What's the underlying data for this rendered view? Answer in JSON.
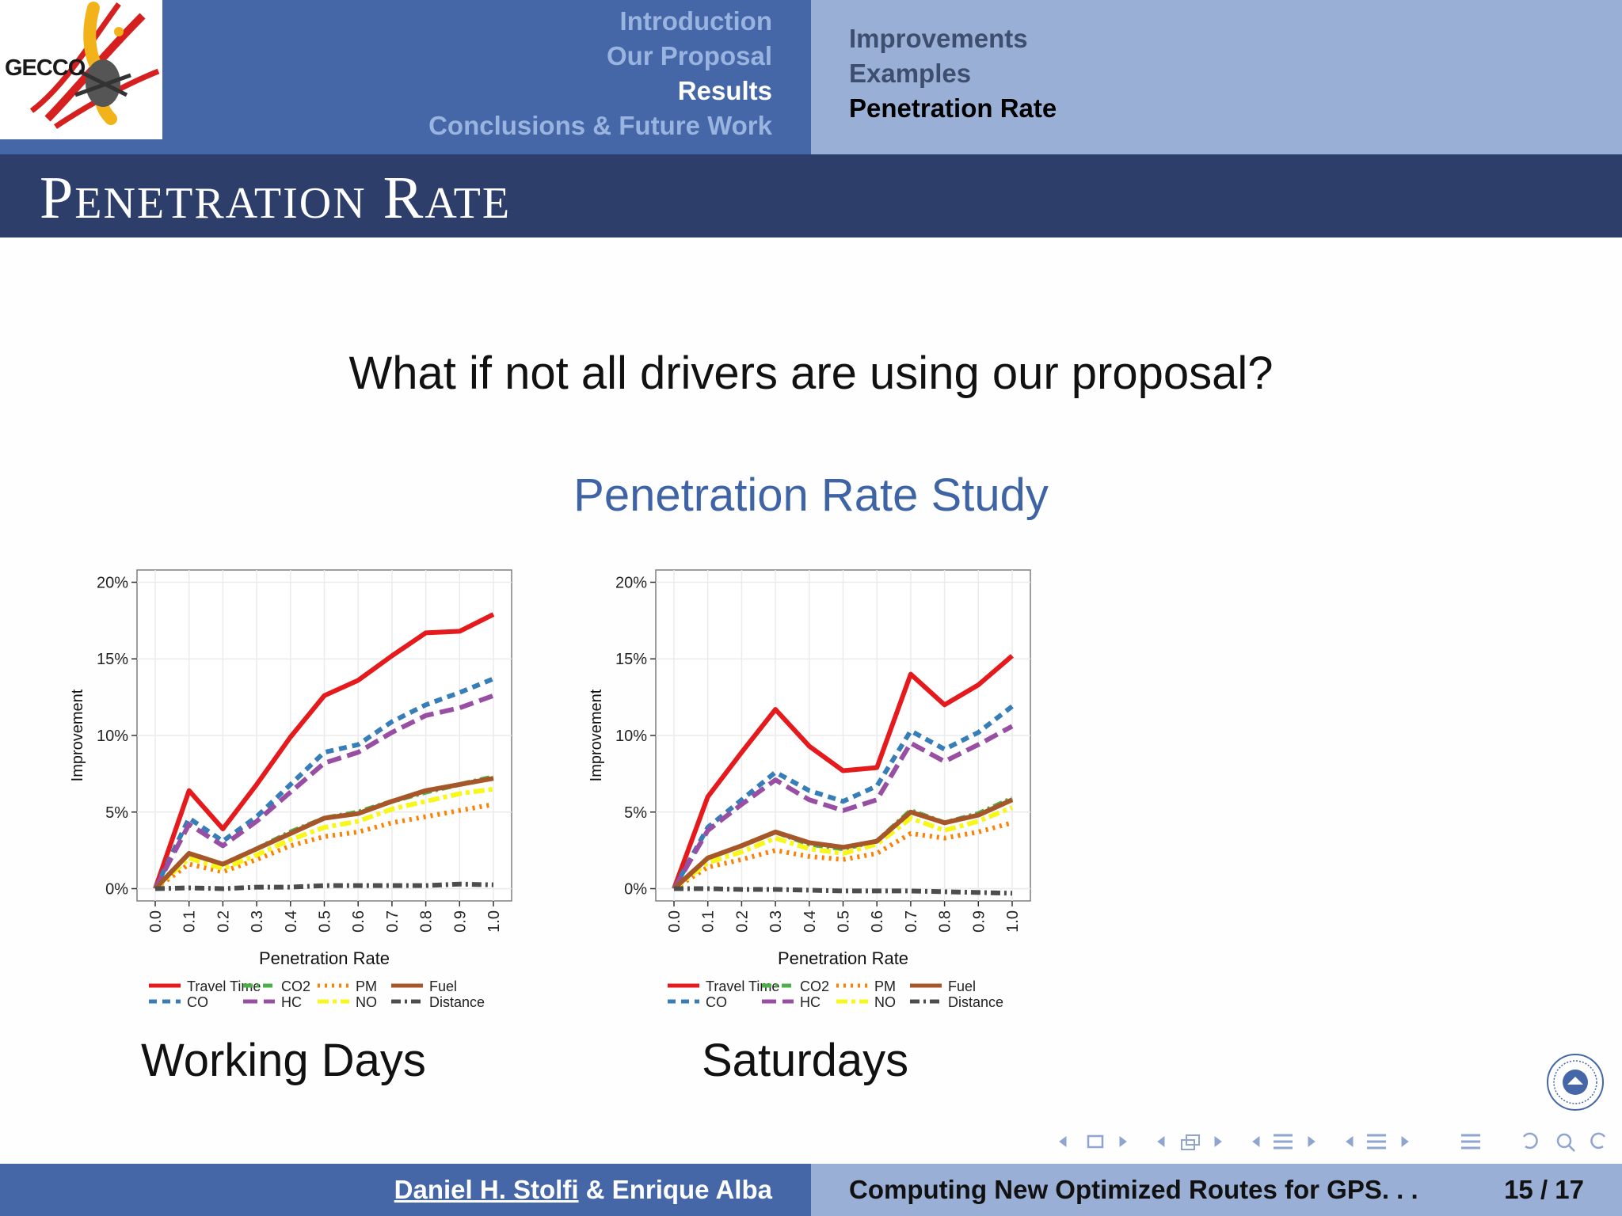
{
  "header": {
    "logo_text": "GECCO",
    "sections": [
      {
        "label": "Introduction",
        "active": false
      },
      {
        "label": "Our Proposal",
        "active": false
      },
      {
        "label": "Results",
        "active": true
      },
      {
        "label": "Conclusions & Future Work",
        "active": false
      }
    ],
    "subsections": [
      {
        "label": "Improvements",
        "active": false
      },
      {
        "label": "Examples",
        "active": false
      },
      {
        "label": "Penetration Rate",
        "active": true
      }
    ]
  },
  "frame": {
    "title_first": "P",
    "title_rest1": "ENETRATION",
    "title_second": "R",
    "title_rest2": "ATE"
  },
  "content": {
    "question": "What if not all drivers are using our proposal?",
    "block_title": "Penetration Rate Study"
  },
  "chart_data": [
    {
      "type": "line",
      "caption": "Working Days",
      "xlabel": "Penetration Rate",
      "ylabel": "Improvement",
      "x": [
        "0.0",
        "0.1",
        "0.2",
        "0.3",
        "0.4",
        "0.5",
        "0.6",
        "0.7",
        "0.8",
        "0.9",
        "1.0"
      ],
      "ylim": [
        -0.8,
        20.8
      ],
      "yticks": [
        "0%",
        "5%",
        "10%",
        "15%",
        "20%"
      ],
      "grid": true,
      "legend": "bottom",
      "series": [
        {
          "name": "Travel Time",
          "color": "#e41a1c",
          "dash": "solid",
          "values": [
            0,
            6.4,
            3.9,
            6.8,
            9.9,
            12.6,
            13.6,
            15.2,
            16.7,
            16.8,
            17.9
          ]
        },
        {
          "name": "CO",
          "color": "#377eb8",
          "dash": "dashed",
          "values": [
            0,
            4.6,
            3.1,
            4.7,
            6.8,
            8.9,
            9.4,
            10.9,
            12.0,
            12.8,
            13.7
          ]
        },
        {
          "name": "CO2",
          "color": "#4daf4a",
          "dash": "dashdot",
          "values": [
            0,
            2.3,
            1.6,
            2.6,
            3.7,
            4.6,
            5.0,
            5.7,
            6.3,
            6.8,
            7.3
          ]
        },
        {
          "name": "HC",
          "color": "#984ea3",
          "dash": "longdash",
          "values": [
            0,
            4.2,
            2.8,
            4.4,
            6.3,
            8.2,
            8.9,
            10.2,
            11.3,
            11.8,
            12.6
          ]
        },
        {
          "name": "PM",
          "color": "#ff7f00",
          "dash": "dotted",
          "values": [
            0,
            1.6,
            1.1,
            1.9,
            2.8,
            3.4,
            3.7,
            4.3,
            4.7,
            5.1,
            5.5
          ]
        },
        {
          "name": "NO",
          "color": "#f7f71a",
          "dash": "twodash",
          "values": [
            0,
            2.0,
            1.3,
            2.2,
            3.2,
            4.0,
            4.4,
            5.2,
            5.7,
            6.2,
            6.5
          ]
        },
        {
          "name": "Fuel",
          "color": "#a65628",
          "dash": "solid",
          "values": [
            0,
            2.3,
            1.6,
            2.6,
            3.6,
            4.6,
            4.9,
            5.7,
            6.4,
            6.8,
            7.2
          ]
        },
        {
          "name": "Distance",
          "color": "#4d4d4d",
          "dash": "dashdot",
          "values": [
            0,
            0.05,
            0.0,
            0.1,
            0.1,
            0.2,
            0.2,
            0.2,
            0.2,
            0.3,
            0.25
          ]
        }
      ]
    },
    {
      "type": "line",
      "caption": "Saturdays",
      "xlabel": "Penetration Rate",
      "ylabel": "Improvement",
      "x": [
        "0.0",
        "0.1",
        "0.2",
        "0.3",
        "0.4",
        "0.5",
        "0.6",
        "0.7",
        "0.8",
        "0.9",
        "1.0"
      ],
      "ylim": [
        -0.8,
        20.8
      ],
      "yticks": [
        "0%",
        "5%",
        "10%",
        "15%",
        "20%"
      ],
      "grid": true,
      "legend": "bottom",
      "series": [
        {
          "name": "Travel Time",
          "color": "#e41a1c",
          "dash": "solid",
          "values": [
            0,
            6.0,
            8.9,
            11.7,
            9.3,
            7.7,
            7.9,
            14.0,
            12.0,
            13.3,
            15.2
          ]
        },
        {
          "name": "CO",
          "color": "#377eb8",
          "dash": "dashed",
          "values": [
            0,
            4.0,
            5.8,
            7.6,
            6.4,
            5.7,
            6.7,
            10.3,
            9.1,
            10.2,
            11.9
          ]
        },
        {
          "name": "CO2",
          "color": "#4daf4a",
          "dash": "dashdot",
          "values": [
            0,
            2.0,
            2.8,
            3.7,
            2.9,
            2.6,
            3.1,
            5.1,
            4.3,
            4.9,
            5.9
          ]
        },
        {
          "name": "HC",
          "color": "#984ea3",
          "dash": "longdash",
          "values": [
            0,
            3.8,
            5.5,
            7.1,
            5.8,
            5.1,
            5.8,
            9.5,
            8.3,
            9.4,
            10.6
          ]
        },
        {
          "name": "PM",
          "color": "#ff7f00",
          "dash": "dotted",
          "values": [
            0,
            1.4,
            1.9,
            2.5,
            2.1,
            1.9,
            2.3,
            3.6,
            3.3,
            3.7,
            4.3
          ]
        },
        {
          "name": "NO",
          "color": "#f7f71a",
          "dash": "twodash",
          "values": [
            0,
            1.7,
            2.4,
            3.3,
            2.6,
            2.3,
            2.9,
            4.6,
            3.8,
            4.4,
            5.3
          ]
        },
        {
          "name": "Fuel",
          "color": "#a65628",
          "dash": "solid",
          "values": [
            0,
            2.0,
            2.8,
            3.7,
            3.0,
            2.7,
            3.1,
            5.0,
            4.3,
            4.8,
            5.8
          ]
        },
        {
          "name": "Distance",
          "color": "#4d4d4d",
          "dash": "dashdot",
          "values": [
            0,
            0.0,
            -0.05,
            -0.05,
            -0.1,
            -0.15,
            -0.15,
            -0.15,
            -0.2,
            -0.25,
            -0.3
          ]
        }
      ]
    }
  ],
  "footer": {
    "author1": "Daniel H. Stolfi",
    "author_rest": " & Enrique Alba",
    "short_title": "Computing New Optimized Routes for GPS. . .",
    "page": "15 / 17"
  }
}
